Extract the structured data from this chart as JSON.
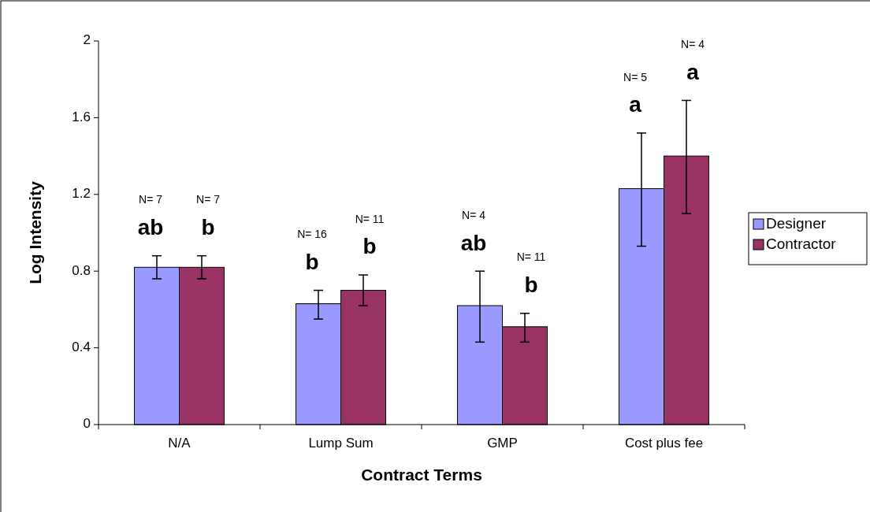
{
  "chart_data": {
    "type": "bar",
    "xlabel": "Contract Terms",
    "ylabel": "Log Intensity",
    "categories": [
      "N/A",
      "Lump Sum",
      "GMP",
      "Cost plus fee"
    ],
    "series": [
      {
        "name": "Designer",
        "color": "#9999ff",
        "values": [
          0.82,
          0.63,
          0.62,
          1.23
        ],
        "errors": [
          [
            0.76,
            0.88
          ],
          [
            0.55,
            0.7
          ],
          [
            0.43,
            0.8
          ],
          [
            0.93,
            1.52
          ]
        ]
      },
      {
        "name": "Contractor",
        "color": "#993366",
        "values": [
          0.82,
          0.7,
          0.51,
          1.4
        ],
        "errors": [
          [
            0.76,
            0.88
          ],
          [
            0.62,
            0.78
          ],
          [
            0.43,
            0.58
          ],
          [
            1.1,
            1.69
          ]
        ]
      }
    ],
    "ylim": [
      0,
      2
    ],
    "yticks": [
      0,
      0.4,
      0.8,
      1.2,
      1.6,
      2
    ],
    "grid": false,
    "legend": "right",
    "annotations": [
      "N= 7",
      "ab",
      "N= 7",
      "b",
      "N= 16",
      "b",
      "N= 11",
      "b",
      "N= 4",
      "ab",
      "N= 11",
      "b",
      "N= 5",
      "a",
      "N= 4",
      "a"
    ]
  }
}
